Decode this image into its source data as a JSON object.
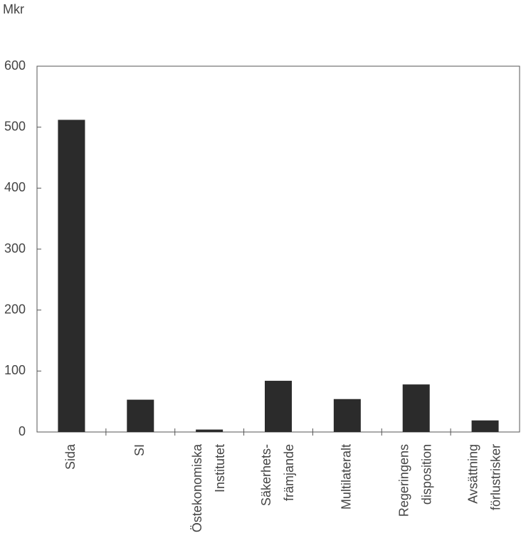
{
  "chart_data": {
    "type": "bar",
    "y_label": "Mkr",
    "categories": [
      [
        "Sida"
      ],
      [
        "SI"
      ],
      [
        "Östekonomiska",
        "Institutet"
      ],
      [
        "Säkerhets-",
        "främjande"
      ],
      [
        "Multilateralt"
      ],
      [
        "Regeringens",
        "disposition"
      ],
      [
        "Avsättning",
        "förlustrisker"
      ]
    ],
    "values": [
      512,
      53,
      4,
      84,
      54,
      78,
      19
    ],
    "color": "#2b2b2b",
    "ylim": [
      0,
      600
    ],
    "yticks": [
      0,
      100,
      200,
      300,
      400,
      500,
      600
    ]
  }
}
